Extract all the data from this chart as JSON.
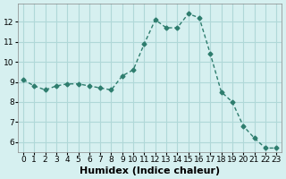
{
  "x": [
    0,
    1,
    2,
    3,
    4,
    5,
    6,
    7,
    8,
    9,
    10,
    11,
    12,
    13,
    14,
    15,
    16,
    17,
    18,
    19,
    20,
    21,
    22,
    23
  ],
  "y": [
    9.1,
    8.8,
    8.6,
    8.8,
    8.9,
    8.9,
    8.8,
    8.7,
    8.6,
    9.3,
    9.6,
    10.9,
    12.1,
    11.7,
    11.7,
    12.4,
    12.2,
    10.4,
    8.5,
    8.0,
    6.8,
    6.2,
    5.7,
    5.7
  ],
  "line_color": "#2e7d6e",
  "marker": "D",
  "marker_size": 2.5,
  "bg_color": "#d6f0f0",
  "grid_color": "#b0d8d8",
  "xlabel": "Humidex (Indice chaleur)",
  "xlabel_fontsize": 8,
  "tick_fontsize": 6.5,
  "ylim": [
    5.5,
    12.9
  ],
  "yticks": [
    6,
    7,
    8,
    9,
    10,
    11,
    12
  ],
  "xlim": [
    -0.5,
    23.5
  ],
  "xticks": [
    0,
    1,
    2,
    3,
    4,
    5,
    6,
    7,
    8,
    9,
    10,
    11,
    12,
    13,
    14,
    15,
    16,
    17,
    18,
    19,
    20,
    21,
    22,
    23
  ]
}
